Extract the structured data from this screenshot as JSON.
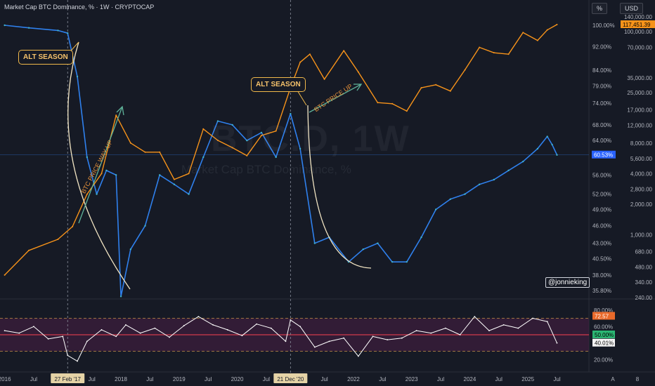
{
  "header": {
    "title": "Market Cap BTC Dominance, % · 1W · CRYPTOCAP",
    "scale_pct": "%",
    "scale_usd": "USD"
  },
  "watermark": {
    "symbol": "BTC.D, 1W",
    "name": "Market Cap BTC Dominance, %"
  },
  "annotations": {
    "alt_season_1": "ALT SEASON",
    "alt_season_2": "ALT SEASON",
    "btc_price_way_up": "BTC PRICE WAY UP",
    "btc_price_up": "BTC PRICE UP",
    "author": "@jonnieking"
  },
  "colors": {
    "background": "#161a25",
    "dominance": "#2f80ed",
    "dominance_light": "#3fb1c8",
    "btc_price": "#f7931a",
    "oscillator": "#ffffff",
    "oscillator_band": "#4a1f45",
    "callout_border": "#f0b84a",
    "guide": "#8a8f9c"
  },
  "chart_data": [
    {
      "type": "line",
      "series": [
        {
          "name": "Market Cap BTC Dominance, %",
          "x": [
            "2016-01",
            "2016-06",
            "2016-12",
            "2017-02",
            "2017-04",
            "2017-06",
            "2017-08",
            "2017-10",
            "2017-12",
            "2018-01",
            "2018-03",
            "2018-06",
            "2018-09",
            "2018-12",
            "2019-03",
            "2019-06",
            "2019-09",
            "2019-12",
            "2020-03",
            "2020-06",
            "2020-09",
            "2020-12",
            "2021-02",
            "2021-05",
            "2021-08",
            "2021-12",
            "2022-03",
            "2022-06",
            "2022-09",
            "2022-12",
            "2023-03",
            "2023-06",
            "2023-09",
            "2023-12",
            "2024-03",
            "2024-06",
            "2024-09",
            "2024-12",
            "2025-03",
            "2025-05",
            "2025-06",
            "2025-07"
          ],
          "values": [
            100.0,
            99.0,
            98.0,
            97.0,
            82.0,
            60.0,
            52.0,
            57.0,
            56.0,
            35.0,
            42.0,
            46.0,
            56.0,
            54.0,
            52.0,
            60.0,
            69.0,
            68.0,
            64.0,
            66.0,
            60.0,
            71.0,
            62.0,
            43.0,
            44.0,
            40.0,
            42.0,
            43.0,
            40.0,
            40.0,
            44.0,
            49.0,
            51.0,
            52.0,
            54.0,
            55.0,
            57.0,
            59.0,
            62.0,
            65.0,
            63.0,
            60.53
          ]
        },
        {
          "name": "BTC price (USD)",
          "x": [
            "2016-01",
            "2016-06",
            "2016-12",
            "2017-03",
            "2017-06",
            "2017-09",
            "2017-12",
            "2018-03",
            "2018-06",
            "2018-09",
            "2018-12",
            "2019-03",
            "2019-06",
            "2019-09",
            "2019-12",
            "2020-03",
            "2020-06",
            "2020-09",
            "2020-12",
            "2021-02",
            "2021-04",
            "2021-07",
            "2021-11",
            "2022-02",
            "2022-06",
            "2022-09",
            "2022-12",
            "2023-03",
            "2023-06",
            "2023-09",
            "2023-12",
            "2024-03",
            "2024-06",
            "2024-09",
            "2024-12",
            "2025-03",
            "2025-05",
            "2025-07"
          ],
          "values": [
            400,
            700,
            900,
            1200,
            2500,
            4000,
            15000,
            8000,
            6500,
            6500,
            3500,
            4000,
            11000,
            8500,
            7200,
            6000,
            9500,
            10500,
            28000,
            50000,
            60000,
            34000,
            65000,
            40000,
            20000,
            19500,
            16500,
            28000,
            30000,
            26000,
            42000,
            70000,
            62000,
            60000,
            98000,
            82000,
            104000,
            117451.39
          ]
        }
      ],
      "y_axis_left_label": "%",
      "y_axis_right_label": "USD",
      "pct_ticks": [
        "100.00%",
        "92.00%",
        "84.00%",
        "79.00%",
        "74.00%",
        "68.00%",
        "64.00%",
        "56.00%",
        "52.00%",
        "49.00%",
        "46.00%",
        "43.00%",
        "40.50%",
        "38.00%",
        "35.80%"
      ],
      "usd_ticks": [
        "140,000.00",
        "100,000.00",
        "70,000.00",
        "35,000.00",
        "25,000.00",
        "17,000.00",
        "12,000.00",
        "8,000.00",
        "5,600.00",
        "4,000.00",
        "2,800.00",
        "2,000.00",
        "1,000.00",
        "680.00",
        "480.00",
        "340.00",
        "240.00"
      ],
      "price_label": "117,451.39",
      "dominance_label": "60.53%",
      "x_ticks": [
        "2016",
        "Jul",
        "27 Feb '17",
        "Jul",
        "2018",
        "Jul",
        "2019",
        "Jul",
        "2020",
        "Jul",
        "21 Dec '20",
        "Jul",
        "2022",
        "Jul",
        "2023",
        "Jul",
        "2024",
        "Jul",
        "2025",
        "Jul",
        "A",
        "8"
      ],
      "markers": [
        "27 Feb '17",
        "21 Dec '20"
      ]
    },
    {
      "type": "line",
      "series": [
        {
          "name": "Oscillator",
          "x": [
            "2016-01",
            "2016-04",
            "2016-07",
            "2016-10",
            "2017-01",
            "2017-02",
            "2017-04",
            "2017-06",
            "2017-09",
            "2017-12",
            "2018-02",
            "2018-05",
            "2018-08",
            "2018-11",
            "2019-02",
            "2019-05",
            "2019-08",
            "2019-11",
            "2020-02",
            "2020-05",
            "2020-08",
            "2020-11",
            "2020-12",
            "2021-02",
            "2021-05",
            "2021-08",
            "2021-11",
            "2022-02",
            "2022-05",
            "2022-08",
            "2022-11",
            "2023-02",
            "2023-05",
            "2023-08",
            "2023-11",
            "2024-02",
            "2024-05",
            "2024-08",
            "2024-11",
            "2025-02",
            "2025-05",
            "2025-07"
          ],
          "values": [
            55,
            52,
            60,
            45,
            48,
            25,
            18,
            42,
            56,
            48,
            62,
            52,
            58,
            47,
            61,
            72,
            62,
            56,
            49,
            63,
            58,
            42,
            68,
            60,
            35,
            42,
            46,
            24,
            48,
            44,
            46,
            55,
            52,
            58,
            50,
            72,
            55,
            62,
            58,
            70,
            66,
            40.01
          ]
        }
      ],
      "ticks": [
        "80.00%",
        "60.00%",
        "40.00%",
        "20.00%"
      ],
      "bands": [
        70,
        30
      ],
      "midline": 50,
      "labels": [
        "72.57",
        "50.00%",
        "40.01%"
      ]
    }
  ]
}
